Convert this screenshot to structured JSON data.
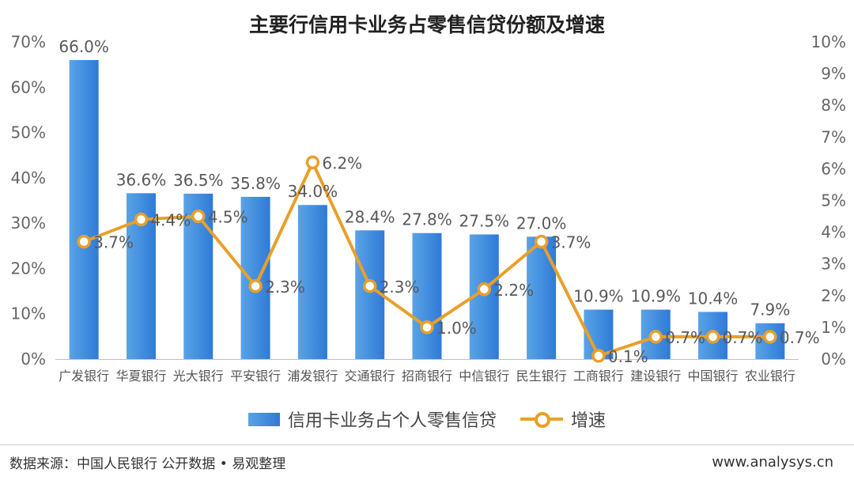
{
  "chart_data": {
    "type": "bar",
    "title": "主要行信用卡业务占零售信贷份额及增速",
    "categories": [
      "广发银行",
      "华夏银行",
      "光大银行",
      "平安银行",
      "浦发银行",
      "交通银行",
      "招商银行",
      "中信银行",
      "民生银行",
      "工商银行",
      "建设银行",
      "中国银行",
      "农业银行"
    ],
    "series": [
      {
        "name": "信用卡业务占个人零售信贷",
        "type": "bar",
        "axis": "left",
        "values": [
          66.0,
          36.6,
          36.5,
          35.8,
          34.0,
          28.4,
          27.8,
          27.5,
          27.0,
          10.9,
          10.9,
          10.4,
          7.9
        ],
        "labels": [
          "66.0%",
          "36.6%",
          "36.5%",
          "35.8%",
          "34.0%",
          "28.4%",
          "27.8%",
          "27.5%",
          "27.0%",
          "10.9%",
          "10.9%",
          "10.4%",
          "7.9%"
        ],
        "color": "#2f7ad8"
      },
      {
        "name": "增速",
        "type": "line",
        "axis": "right",
        "values": [
          3.7,
          4.4,
          4.5,
          2.3,
          6.2,
          2.3,
          1.0,
          2.2,
          3.7,
          0.1,
          0.7,
          0.7,
          0.7
        ],
        "labels": [
          "3.7%",
          "4.4%",
          "4.5%",
          "2.3%",
          "6.2%",
          "2.3%",
          "1.0%",
          "2.2%",
          "3.7%",
          "0.1%",
          "0.7%",
          "0.7%",
          "0.7%"
        ],
        "color": "#e8a02a"
      }
    ],
    "y_left": {
      "min": 0,
      "max": 70,
      "step": 10,
      "ticks": [
        "0%",
        "10%",
        "20%",
        "30%",
        "40%",
        "50%",
        "60%",
        "70%"
      ]
    },
    "y_right": {
      "min": 0,
      "max": 10,
      "step": 1,
      "ticks": [
        "0%",
        "1%",
        "2%",
        "3%",
        "4%",
        "5%",
        "6%",
        "7%",
        "8%",
        "9%",
        "10%"
      ]
    },
    "grid": false,
    "legend_position": "bottom"
  },
  "footer": {
    "source": "数据来源：中国人民银行 公开数据 • 易观整理",
    "site": "www.analysys.cn"
  },
  "colors": {
    "bar": "#2f7ad8",
    "line": "#e8a02a",
    "axis_text": "#666666"
  }
}
